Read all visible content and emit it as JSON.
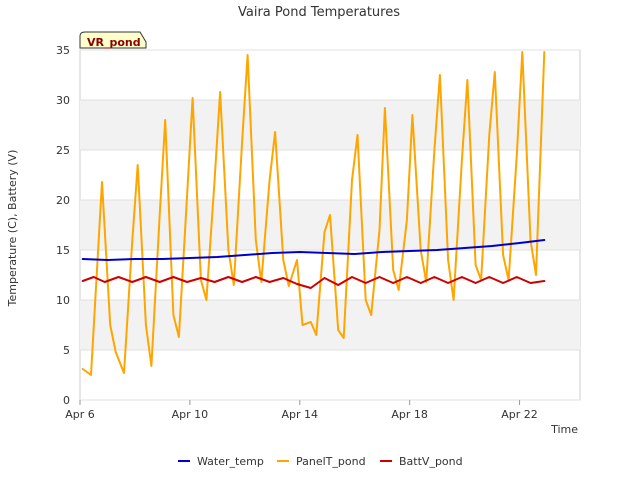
{
  "chart_data": {
    "type": "line",
    "title": "Vaira Pond Temperatures",
    "xlabel": "Time",
    "ylabel": "Temperature (C), Battery (V)",
    "badge": "VR_pond",
    "xlim": [
      0,
      18.2
    ],
    "ylim": [
      0,
      35
    ],
    "yticks": [
      0,
      5,
      10,
      15,
      20,
      25,
      30,
      35
    ],
    "xticks": [
      {
        "value": 0,
        "label": "Apr 6"
      },
      {
        "value": 4,
        "label": "Apr 10"
      },
      {
        "value": 8,
        "label": "Apr 14"
      },
      {
        "value": 12,
        "label": "Apr 18"
      },
      {
        "value": 16,
        "label": "Apr 22"
      }
    ],
    "grid": true,
    "legend_position": "bottom",
    "series": [
      {
        "name": "Water_temp",
        "color": "#0000cc",
        "x": [
          0.1,
          1,
          2,
          3,
          4,
          5,
          6,
          7,
          8,
          9,
          10,
          11,
          12,
          13,
          14,
          15,
          16,
          16.9
        ],
        "y": [
          14.1,
          14.0,
          14.1,
          14.1,
          14.2,
          14.3,
          14.5,
          14.7,
          14.8,
          14.7,
          14.6,
          14.8,
          14.9,
          15.0,
          15.2,
          15.4,
          15.7,
          16.0
        ]
      },
      {
        "name": "PanelT_pond",
        "color": "#ffa500",
        "x": [
          0.1,
          0.4,
          0.8,
          1.1,
          1.3,
          1.6,
          1.9,
          2.1,
          2.4,
          2.6,
          2.9,
          3.1,
          3.4,
          3.6,
          3.9,
          4.1,
          4.4,
          4.6,
          4.9,
          5.1,
          5.4,
          5.6,
          5.9,
          6.1,
          6.4,
          6.6,
          6.9,
          7.1,
          7.4,
          7.6,
          7.9,
          8.1,
          8.4,
          8.6,
          8.9,
          9.1,
          9.4,
          9.6,
          9.9,
          10.1,
          10.4,
          10.6,
          10.9,
          11.1,
          11.4,
          11.6,
          11.9,
          12.1,
          12.4,
          12.6,
          12.9,
          13.1,
          13.4,
          13.6,
          13.9,
          14.1,
          14.4,
          14.6,
          14.9,
          15.1,
          15.4,
          15.6,
          15.9,
          16.1,
          16.4,
          16.6,
          16.9
        ],
        "y": [
          3.1,
          2.5,
          21.8,
          7.5,
          4.8,
          2.7,
          15.8,
          23.5,
          7.5,
          3.4,
          18.5,
          28.0,
          8.5,
          6.3,
          20.5,
          30.2,
          12.0,
          10.0,
          22.0,
          30.8,
          15.0,
          11.5,
          25.8,
          34.5,
          16.0,
          11.8,
          22.0,
          26.8,
          14.0,
          11.4,
          14.0,
          7.5,
          7.8,
          6.5,
          16.8,
          18.5,
          7.0,
          6.2,
          22.0,
          26.5,
          10.0,
          8.5,
          17.0,
          29.2,
          13.0,
          11.0,
          18.0,
          28.5,
          15.0,
          11.8,
          25.0,
          32.5,
          14.0,
          10.0,
          24.0,
          32.0,
          13.5,
          12.0,
          26.5,
          32.8,
          14.5,
          12.0,
          24.5,
          34.8,
          16.0,
          12.5,
          34.8
        ]
      },
      {
        "name": "BattV_pond",
        "color": "#cc0000",
        "x": [
          0.1,
          0.5,
          0.9,
          1.4,
          1.9,
          2.4,
          2.9,
          3.4,
          3.9,
          4.4,
          4.9,
          5.4,
          5.9,
          6.4,
          6.9,
          7.4,
          7.9,
          8.4,
          8.9,
          9.4,
          9.9,
          10.4,
          10.9,
          11.4,
          11.9,
          12.4,
          12.9,
          13.4,
          13.9,
          14.4,
          14.9,
          15.4,
          15.9,
          16.4,
          16.9
        ],
        "y": [
          11.9,
          12.3,
          11.8,
          12.3,
          11.8,
          12.3,
          11.8,
          12.3,
          11.8,
          12.2,
          11.8,
          12.3,
          11.8,
          12.3,
          11.8,
          12.2,
          11.6,
          11.2,
          12.2,
          11.5,
          12.3,
          11.7,
          12.3,
          11.7,
          12.3,
          11.7,
          12.3,
          11.7,
          12.3,
          11.7,
          12.3,
          11.7,
          12.3,
          11.7,
          11.9
        ]
      }
    ]
  }
}
